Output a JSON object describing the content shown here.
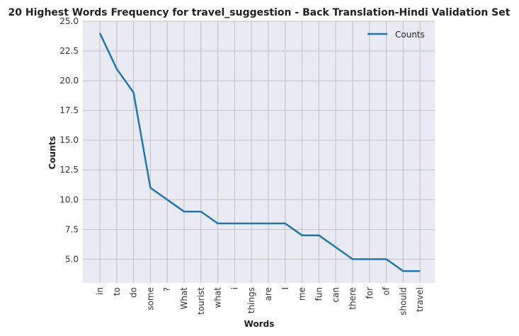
{
  "chart_data": {
    "type": "line",
    "title": "20 Highest Words Frequency for travel_suggestion - Back Translation-Hindi Validation Set",
    "xlabel": "Words",
    "ylabel": "Counts",
    "categories": [
      "in",
      "to",
      "do",
      "some",
      "?",
      "What",
      "tourist",
      "what",
      "i",
      "things",
      "are",
      "I",
      "me",
      "fun",
      "can",
      "there",
      "for",
      "of",
      "should",
      "travel"
    ],
    "series": [
      {
        "name": "Counts",
        "values": [
          24,
          21,
          19,
          11,
          10,
          9,
          9,
          8,
          8,
          8,
          8,
          8,
          7,
          7,
          6,
          5,
          5,
          5,
          4,
          4
        ],
        "color": "#1f77b4"
      }
    ],
    "ylim": [
      3.0,
      25.0
    ],
    "yticks": [
      5.0,
      7.5,
      10.0,
      12.5,
      15.0,
      17.5,
      20.0,
      22.5,
      25.0
    ],
    "ytick_labels": [
      "5.0",
      "7.5",
      "10.0",
      "12.5",
      "15.0",
      "17.5",
      "20.0",
      "22.5",
      "25.0"
    ],
    "grid": true,
    "legend_position": "top-right",
    "background_color": "#eaeaf2",
    "grid_color": "#c0c0c0"
  }
}
